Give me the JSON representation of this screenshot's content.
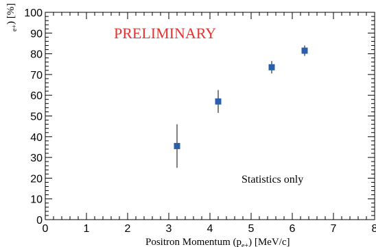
{
  "chart_data": {
    "type": "scatter",
    "title": "",
    "xlabel": "Positron Momentum (p",
    "xlabel_sub": "e+",
    "xlabel_tail": ")  [MeV/c]",
    "ylabel": ") [%]",
    "ylabel_sub": "e+",
    "xlim": [
      0,
      8
    ],
    "ylim": [
      0,
      100
    ],
    "x_ticks": [
      "0",
      "1",
      "2",
      "3",
      "4",
      "5",
      "6",
      "7",
      "8"
    ],
    "y_ticks": [
      "0",
      "10",
      "20",
      "30",
      "40",
      "50",
      "60",
      "70",
      "80",
      "90",
      "100"
    ],
    "grid": false,
    "marker_color": "#2b5fab",
    "annotation_color": "#e8312f",
    "points": [
      {
        "x": 3.2,
        "y": 35.5,
        "err_low": 10.5,
        "err_high": 10.5
      },
      {
        "x": 4.2,
        "y": 57.0,
        "err_low": 5.5,
        "err_high": 5.5
      },
      {
        "x": 5.5,
        "y": 73.5,
        "err_low": 3.0,
        "err_high": 3.0
      },
      {
        "x": 6.3,
        "y": 81.5,
        "err_low": 2.5,
        "err_high": 2.5
      }
    ],
    "annotations": {
      "preliminary": "PRELIMINARY",
      "stats_note": "Statistics only"
    }
  }
}
